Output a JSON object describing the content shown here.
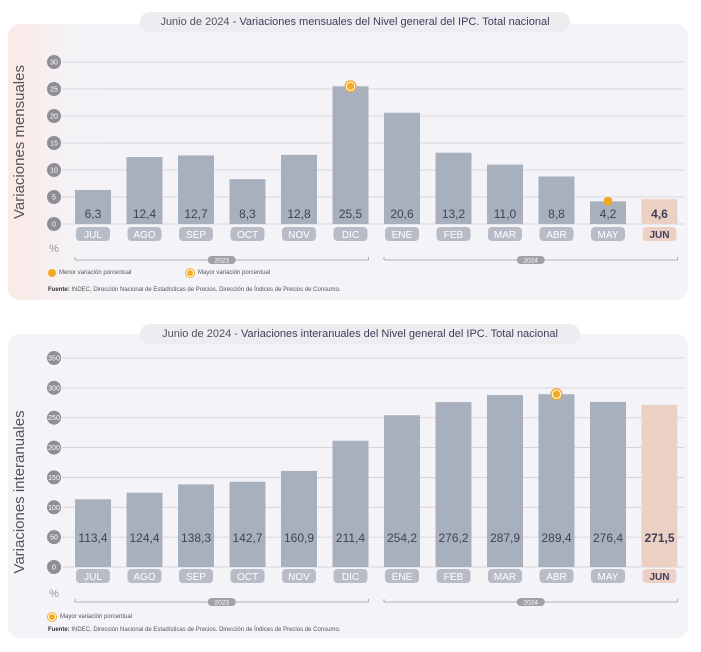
{
  "charts": [
    {
      "title_prefix": "Junio de 2024 - ",
      "title_main": "Variaciones mensuales del Nivel general del IPC. Total nacional",
      "legend_min": "Menor variación porcentual",
      "legend_max": "Mayor variación porcentual",
      "source_label": "Fuente:",
      "source_text": " INDEC, Dirección Nacional de Estadísticas de Precios. Dirección de Índices de Precios de Consumo."
    },
    {
      "title_prefix": "Junio de 2024 - ",
      "title_main": "Variaciones interanuales del Nivel general del IPC. Total nacional",
      "legend_max": "Mayor variación porcentual",
      "source_label": "Fuente:",
      "source_text": " INDEC, Dirección Nacional de Estadísticas de Precios. Dirección de Índices de Precios de Consumo."
    }
  ],
  "chart_data": [
    {
      "type": "bar",
      "ylabel": "Variaciones mensuales",
      "unit": "%",
      "ylim": [
        0,
        30
      ],
      "yticks": [
        "0",
        "5",
        "10",
        "15",
        "20",
        "25",
        "30"
      ],
      "categories": [
        "JUL",
        "AGO",
        "SEP",
        "OCT",
        "NOV",
        "DIC",
        "ENE",
        "FEB",
        "MAR",
        "ABR",
        "MAY",
        "JUN"
      ],
      "values": [
        6.3,
        12.4,
        12.7,
        8.3,
        12.8,
        25.5,
        20.6,
        13.2,
        11.0,
        8.8,
        4.2,
        4.6
      ],
      "value_labels": [
        "6,3",
        "12,4",
        "12,7",
        "8,3",
        "12,8",
        "25,5",
        "20,6",
        "13,2",
        "11,0",
        "8,8",
        "4,2",
        "4,6"
      ],
      "year_groups": [
        {
          "label": "2023",
          "from": 0,
          "to": 5
        },
        {
          "label": "2024",
          "from": 6,
          "to": 11
        }
      ],
      "highlight_index": 11,
      "min_marker_index": 10,
      "max_marker_index": 5,
      "colors": {
        "bar": "#a9b0bd",
        "highlight": "#ecd0c3",
        "marker": "#f2a923"
      },
      "grid": true
    },
    {
      "type": "bar",
      "ylabel": "Variaciones interanuales",
      "unit": "%",
      "ylim": [
        0,
        350
      ],
      "yticks": [
        "0",
        "50",
        "100",
        "150",
        "200",
        "250",
        "300",
        "350"
      ],
      "categories": [
        "JUL",
        "AGO",
        "SEP",
        "OCT",
        "NOV",
        "DIC",
        "ENE",
        "FEB",
        "MAR",
        "ABR",
        "MAY",
        "JUN"
      ],
      "values": [
        113.4,
        124.4,
        138.3,
        142.7,
        160.9,
        211.4,
        254.2,
        276.2,
        287.9,
        289.4,
        276.4,
        271.5
      ],
      "value_labels": [
        "113,4",
        "124,4",
        "138,3",
        "142,7",
        "160,9",
        "211,4",
        "254,2",
        "276,2",
        "287,9",
        "289,4",
        "276,4",
        "271,5"
      ],
      "year_groups": [
        {
          "label": "2023",
          "from": 0,
          "to": 5
        },
        {
          "label": "2024",
          "from": 6,
          "to": 11
        }
      ],
      "highlight_index": 11,
      "max_marker_index": 9,
      "colors": {
        "bar": "#a9b0bd",
        "highlight": "#ecd0c3",
        "marker": "#f2a923"
      },
      "grid": true
    }
  ]
}
